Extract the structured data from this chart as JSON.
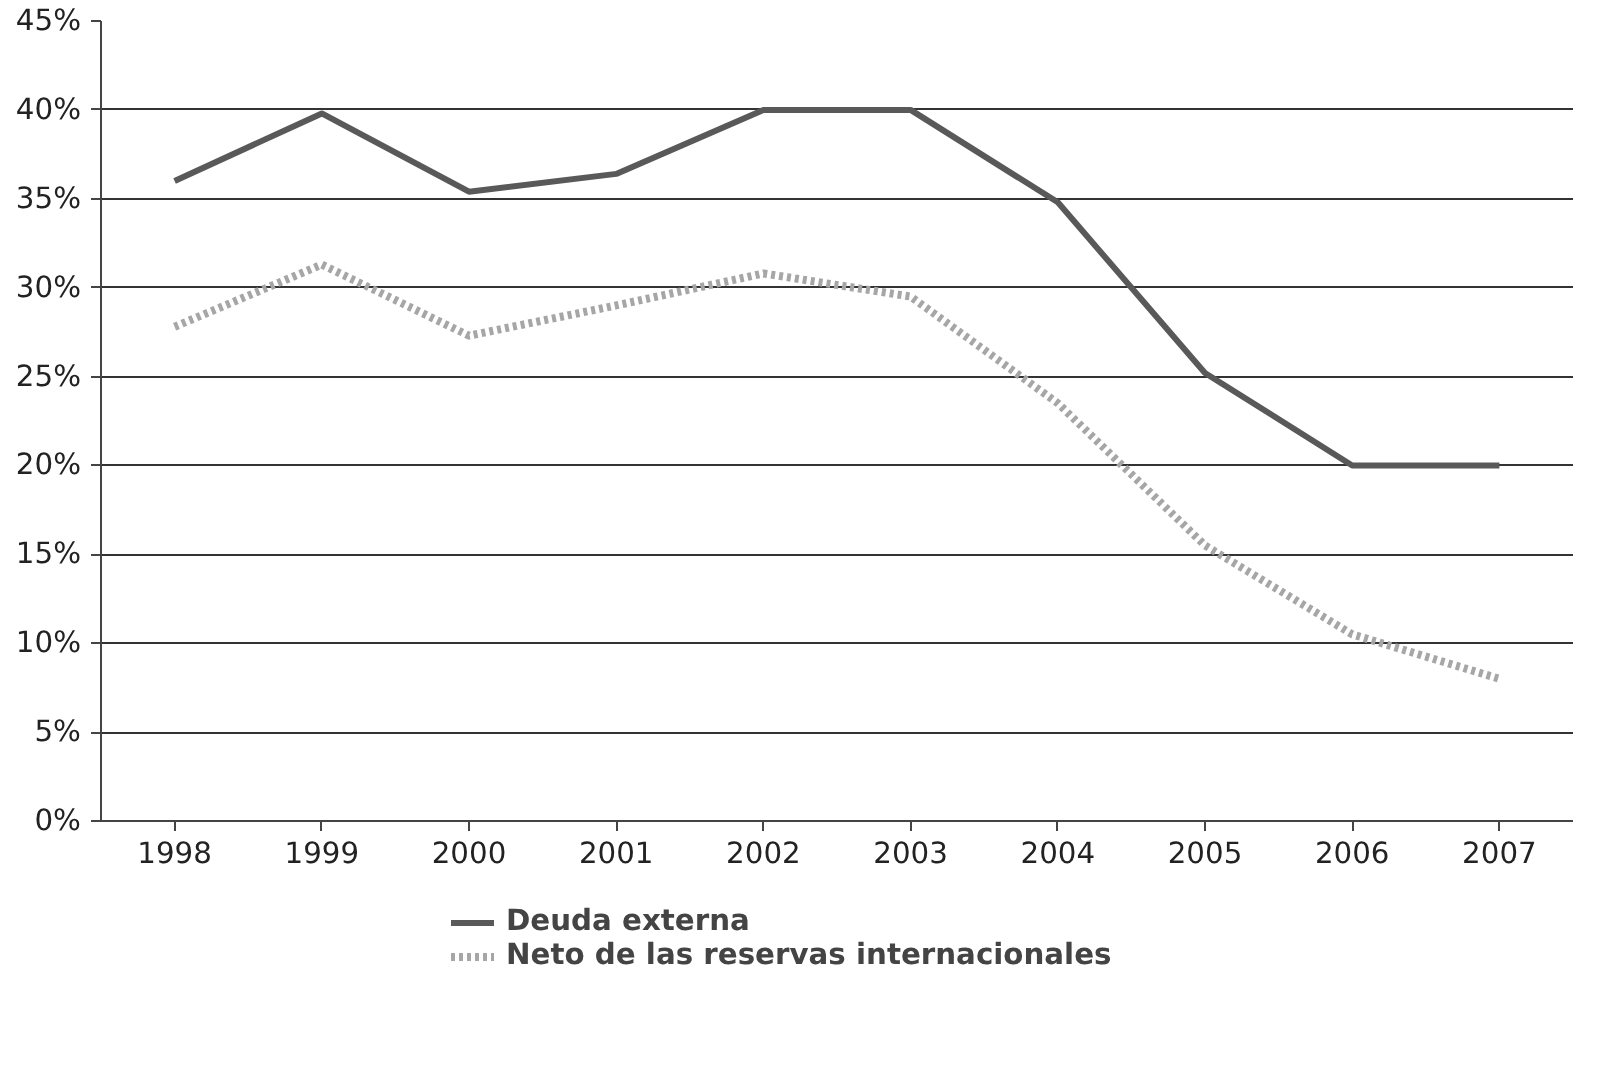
{
  "chart_data": {
    "type": "line",
    "categories": [
      "1998",
      "1999",
      "2000",
      "2001",
      "2002",
      "2003",
      "2004",
      "2005",
      "2006",
      "2007"
    ],
    "series": [
      {
        "name": "Deuda externa",
        "color": "#595959",
        "line_style": "solid",
        "values": [
          36,
          39.8,
          35.4,
          36.4,
          40,
          40,
          34.8,
          25.2,
          20,
          20
        ]
      },
      {
        "name": "Neto de las reservas internacionales",
        "color": "#a6a6a6",
        "line_style": "dotted",
        "values": [
          27.8,
          31.3,
          27.3,
          29,
          30.8,
          29.5,
          23.5,
          15.5,
          10.5,
          8
        ]
      }
    ],
    "ylim": [
      0,
      45
    ],
    "yticks": [
      {
        "value": 0,
        "label": "0%"
      },
      {
        "value": 5,
        "label": "5%"
      },
      {
        "value": 10,
        "label": "10%"
      },
      {
        "value": 15,
        "label": "15%"
      },
      {
        "value": 20,
        "label": "20%"
      },
      {
        "value": 25,
        "label": "25%"
      },
      {
        "value": 30,
        "label": "30%"
      },
      {
        "value": 35,
        "label": "35%"
      },
      {
        "value": 40,
        "label": "40%"
      },
      {
        "value": 45,
        "label": "45%"
      }
    ],
    "grid": "y",
    "legend": "bottom",
    "marker": "none"
  }
}
